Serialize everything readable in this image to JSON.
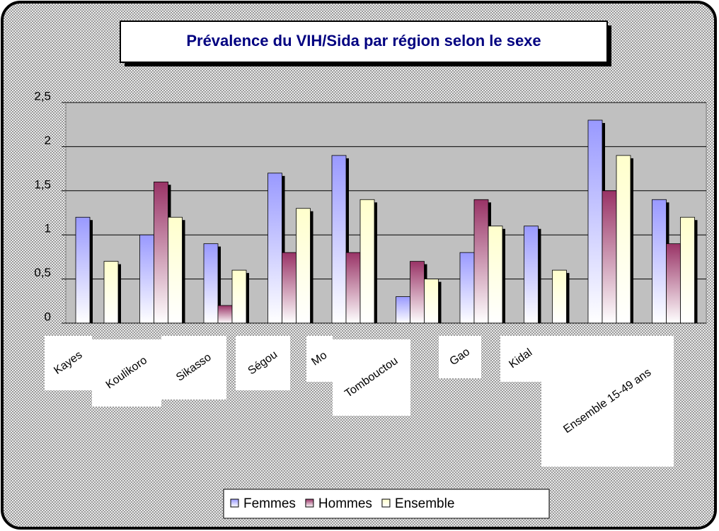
{
  "chart_data": {
    "type": "bar",
    "title": "Prévalence du VIH/Sida par région selon le sexe",
    "categories": [
      "Kayes",
      "Koulikoro",
      "Sikasso",
      "Ségou",
      "Mo",
      "Tombouctou",
      "Gao",
      "Kidal",
      "Ensemble 15-49 ans",
      null
    ],
    "series": [
      {
        "name": "Femmes",
        "color": "#9999ff",
        "values": [
          1.2,
          1.0,
          0.9,
          1.7,
          1.9,
          0.3,
          0.8,
          1.1,
          2.3,
          1.4
        ]
      },
      {
        "name": "Hommes",
        "color": "#993366",
        "values": [
          null,
          1.6,
          0.2,
          0.8,
          0.8,
          0.7,
          1.4,
          null,
          1.5,
          0.9
        ]
      },
      {
        "name": "Ensemble",
        "color": "#ffffcc",
        "values": [
          0.7,
          1.2,
          0.6,
          1.3,
          1.4,
          0.5,
          1.1,
          0.6,
          1.9,
          1.2
        ]
      }
    ],
    "ylim": [
      0,
      2.5
    ],
    "yticks": [
      0,
      {
        "value": 0.5,
        "label": "0,5"
      },
      1,
      {
        "value": 1.5,
        "label": "1,5"
      },
      2,
      {
        "value": 2.5,
        "label": "2,5"
      }
    ],
    "grid": true
  }
}
